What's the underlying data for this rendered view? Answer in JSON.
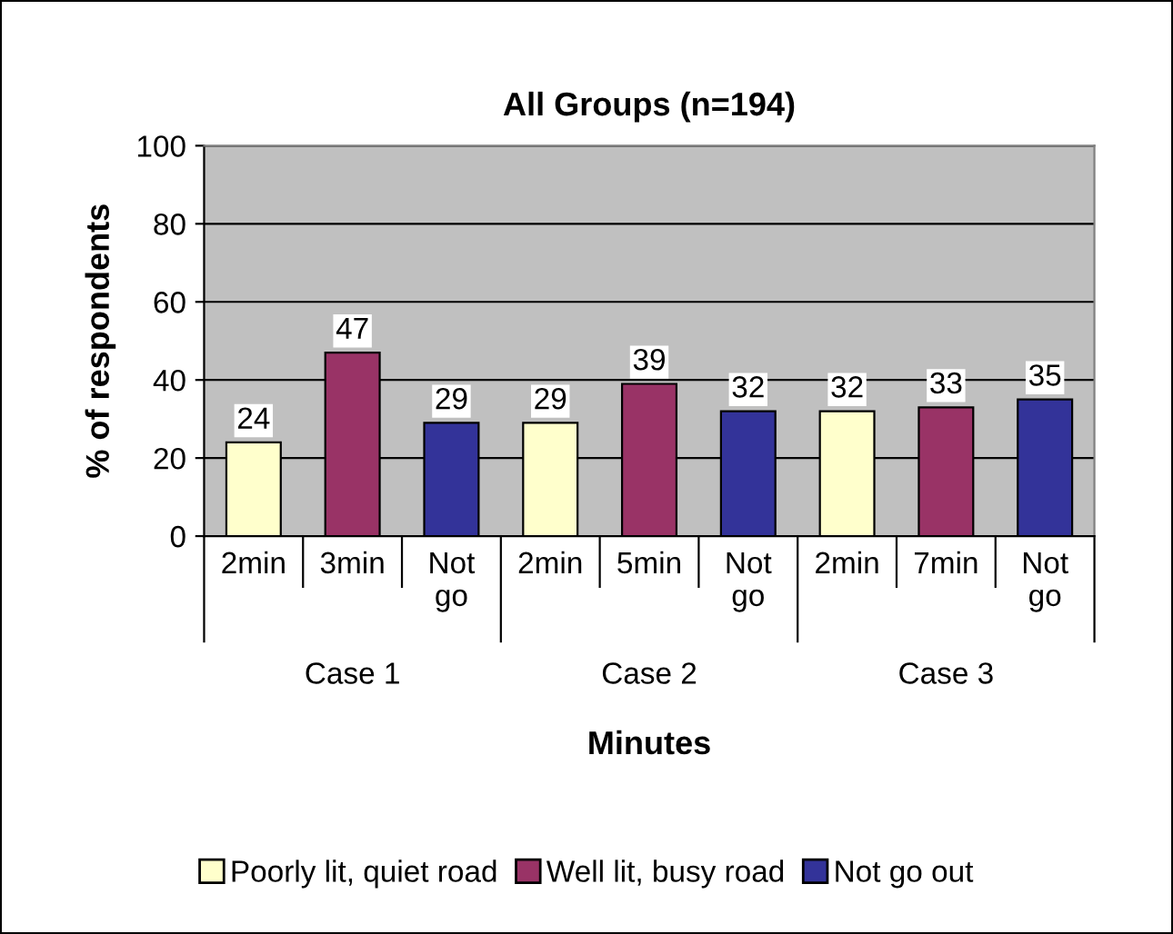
{
  "chart_data": {
    "type": "bar",
    "title": "All Groups (n=194)",
    "xlabel": "Minutes",
    "ylabel": "% of respondents",
    "categories": [
      "2min",
      "3min",
      "Not go",
      "2min",
      "5min",
      "Not go",
      "2min",
      "7min",
      "Not go"
    ],
    "series": [
      {
        "name": "Poorly lit, quiet road",
        "color": "#ffffcc",
        "values": [
          24,
          null,
          null,
          29,
          null,
          null,
          32,
          null,
          null
        ]
      },
      {
        "name": "Well lit, busy road",
        "color": "#993366",
        "values": [
          null,
          47,
          null,
          null,
          39,
          null,
          null,
          33,
          null
        ]
      },
      {
        "name": "Not go out",
        "color": "#333399",
        "values": [
          null,
          null,
          29,
          null,
          null,
          32,
          null,
          null,
          35
        ]
      }
    ],
    "annotations": [
      "Case 1",
      "Case 2",
      "Case 3"
    ],
    "ylim": [
      0,
      100
    ],
    "yticks": [
      0,
      20,
      40,
      60,
      80,
      100
    ],
    "grid": "y",
    "data_labels": true,
    "legend": "bottom"
  }
}
